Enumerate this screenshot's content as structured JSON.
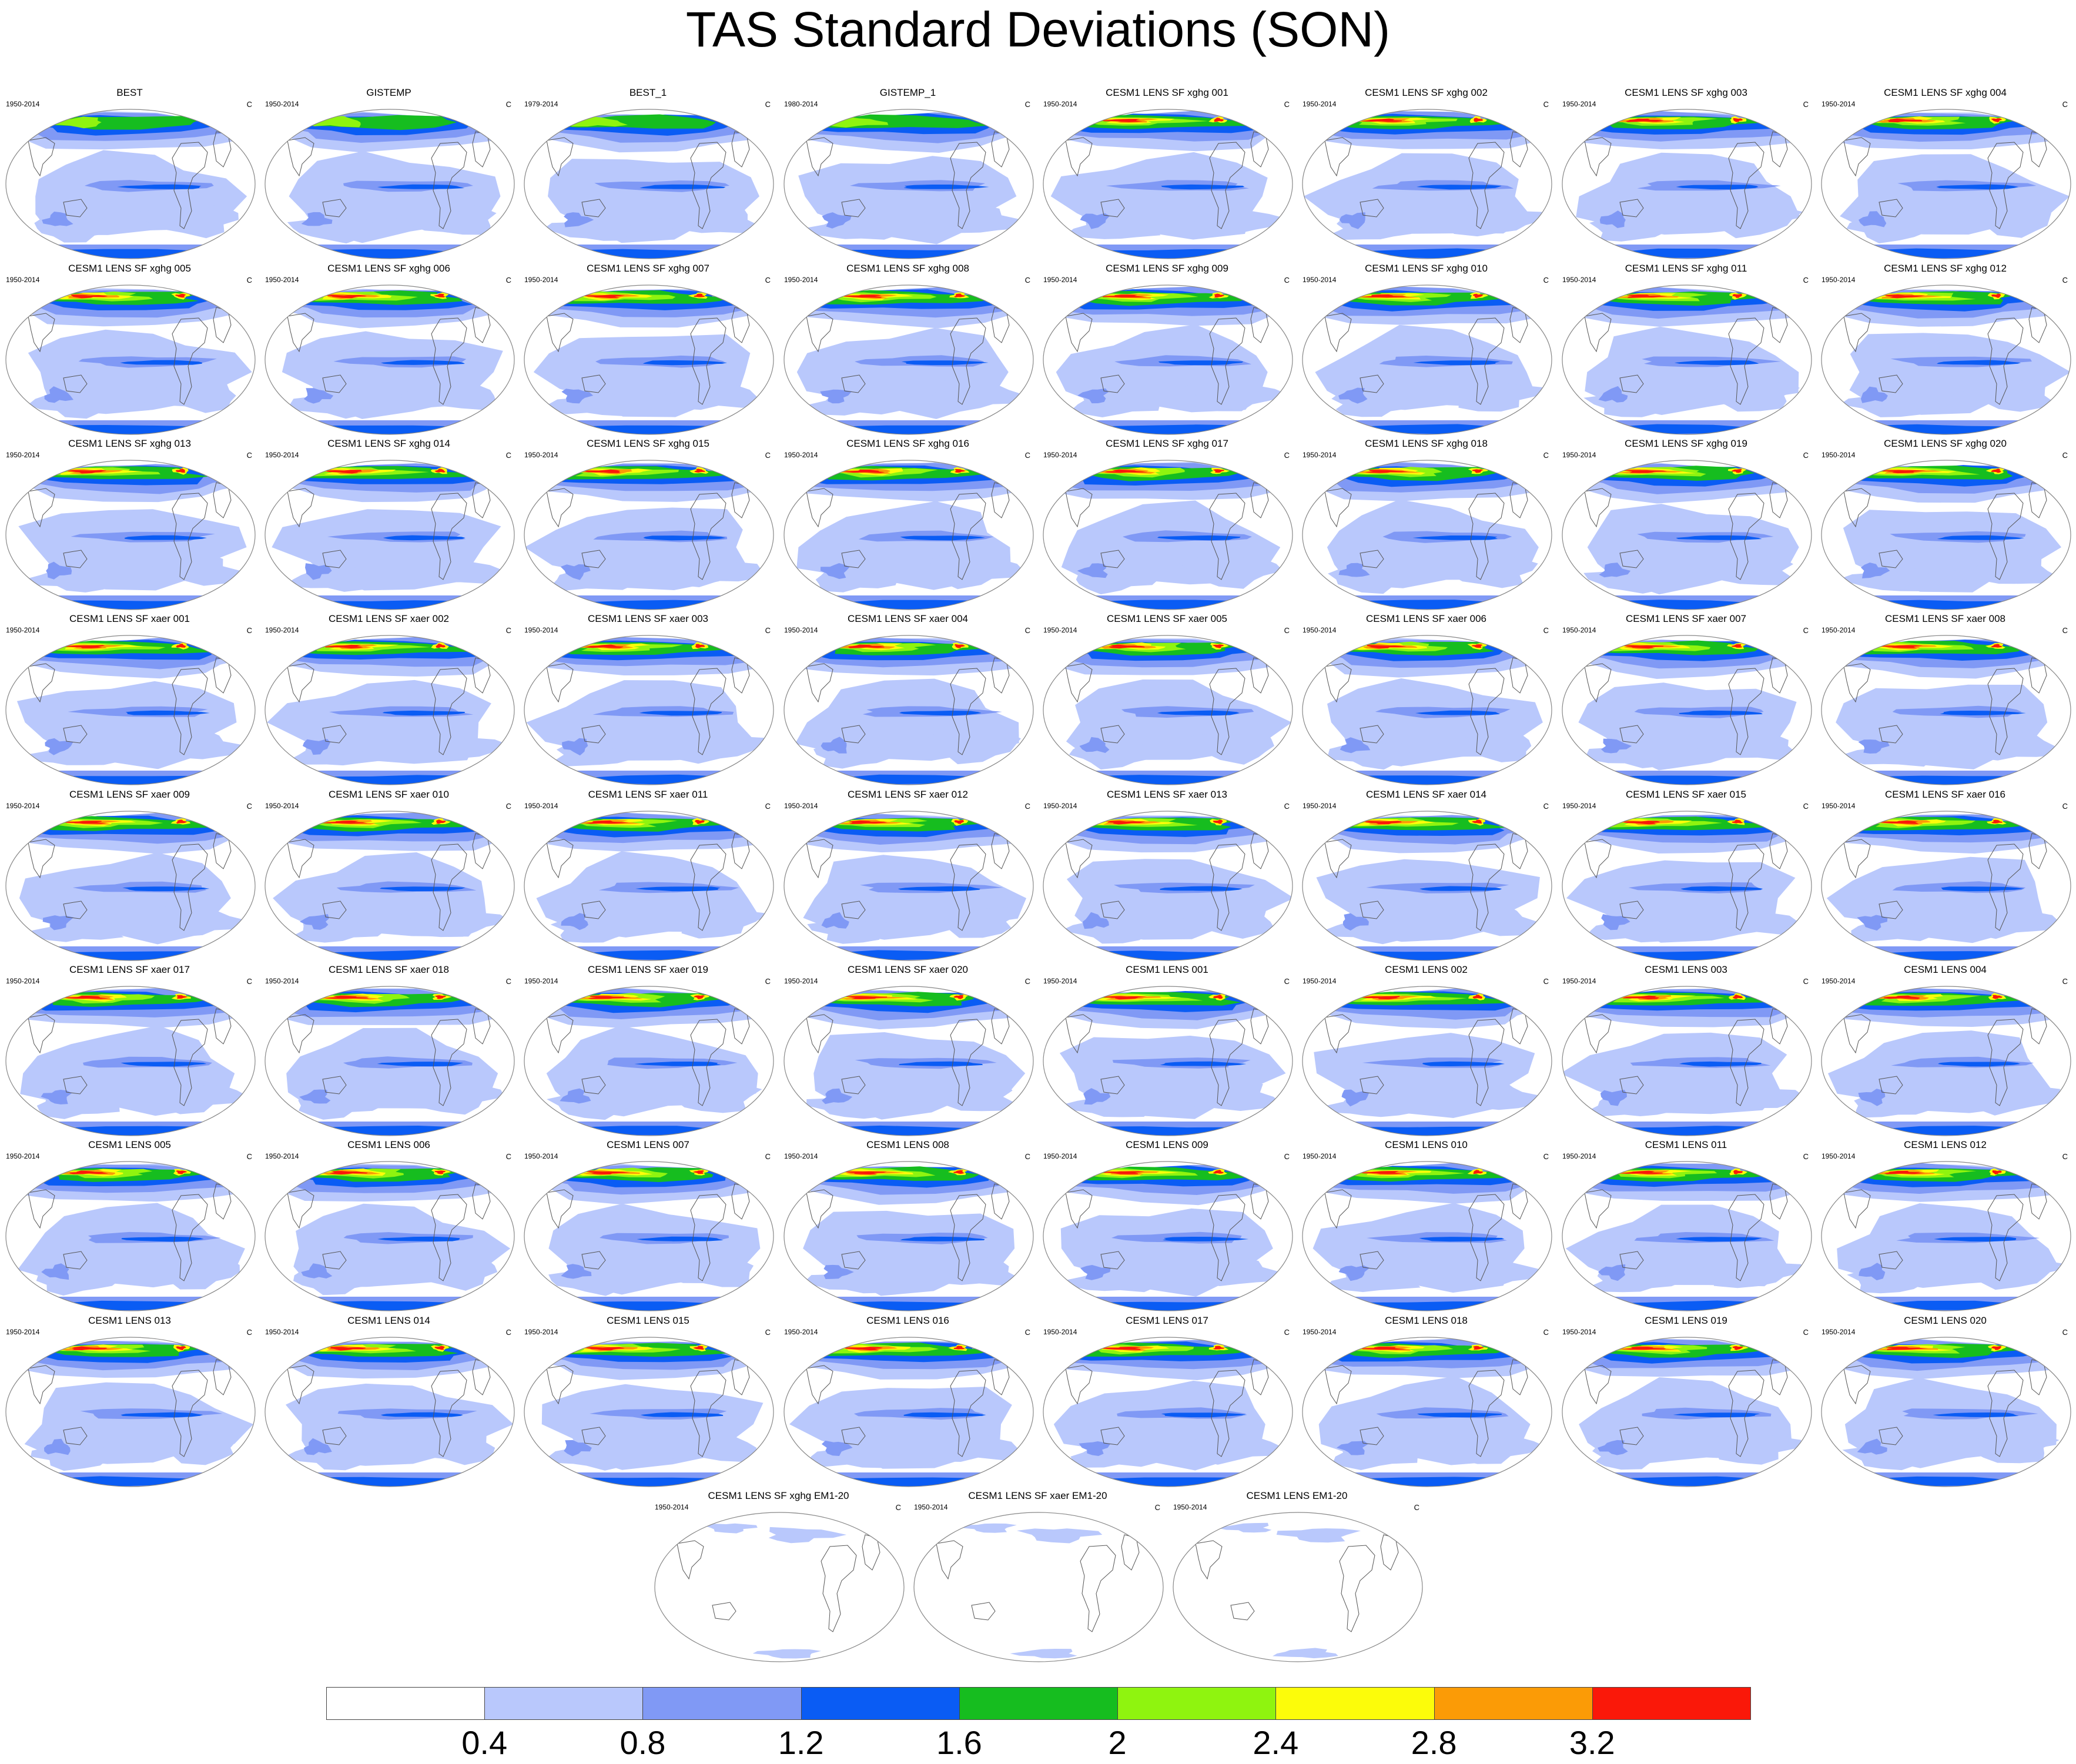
{
  "title": "TAS Standard Deviations (SON)",
  "units": "C",
  "colors": {
    "levels": [
      "#ffffff",
      "#b9c8fc",
      "#8099f5",
      "#0a5cf4",
      "#16bd1f",
      "#8ff40f",
      "#fcfc0a",
      "#fb9b06",
      "#fa1809"
    ],
    "coast": "#555555",
    "frame": "#888888"
  },
  "colorbar": {
    "labels": [
      "0.4",
      "0.8",
      "1.2",
      "1.6",
      "2",
      "2.4",
      "2.8",
      "3.2"
    ]
  },
  "panels": [
    {
      "title": "BEST",
      "period": "1950-2014",
      "kind": "obs"
    },
    {
      "title": "GISTEMP",
      "period": "1950-2014",
      "kind": "obs"
    },
    {
      "title": "BEST_1",
      "period": "1979-2014",
      "kind": "obs"
    },
    {
      "title": "GISTEMP_1",
      "period": "1980-2014",
      "kind": "obs"
    },
    {
      "title": "CESM1 LENS SF xghg 001",
      "period": "1950-2014",
      "kind": "xghg"
    },
    {
      "title": "CESM1 LENS SF xghg 002",
      "period": "1950-2014",
      "kind": "xghg"
    },
    {
      "title": "CESM1 LENS SF xghg 003",
      "period": "1950-2014",
      "kind": "xghg"
    },
    {
      "title": "CESM1 LENS SF xghg 004",
      "period": "1950-2014",
      "kind": "xghg"
    },
    {
      "title": "CESM1 LENS SF xghg 005",
      "period": "1950-2014",
      "kind": "xghg"
    },
    {
      "title": "CESM1 LENS SF xghg 006",
      "period": "1950-2014",
      "kind": "xghg"
    },
    {
      "title": "CESM1 LENS SF xghg 007",
      "period": "1950-2014",
      "kind": "xghg"
    },
    {
      "title": "CESM1 LENS SF xghg 008",
      "period": "1950-2014",
      "kind": "xghg"
    },
    {
      "title": "CESM1 LENS SF xghg 009",
      "period": "1950-2014",
      "kind": "xghg"
    },
    {
      "title": "CESM1 LENS SF xghg 010",
      "period": "1950-2014",
      "kind": "xghg"
    },
    {
      "title": "CESM1 LENS SF xghg 011",
      "period": "1950-2014",
      "kind": "xghg"
    },
    {
      "title": "CESM1 LENS SF xghg 012",
      "period": "1950-2014",
      "kind": "xghg"
    },
    {
      "title": "CESM1 LENS SF xghg 013",
      "period": "1950-2014",
      "kind": "xghg"
    },
    {
      "title": "CESM1 LENS SF xghg 014",
      "period": "1950-2014",
      "kind": "xghg"
    },
    {
      "title": "CESM1 LENS SF xghg 015",
      "period": "1950-2014",
      "kind": "xghg"
    },
    {
      "title": "CESM1 LENS SF xghg 016",
      "period": "1950-2014",
      "kind": "xghg"
    },
    {
      "title": "CESM1 LENS SF xghg 017",
      "period": "1950-2014",
      "kind": "xghg"
    },
    {
      "title": "CESM1 LENS SF xghg 018",
      "period": "1950-2014",
      "kind": "xghg"
    },
    {
      "title": "CESM1 LENS SF xghg 019",
      "period": "1950-2014",
      "kind": "xghg"
    },
    {
      "title": "CESM1 LENS SF xghg 020",
      "period": "1950-2014",
      "kind": "xghg"
    },
    {
      "title": "CESM1 LENS SF xaer 001",
      "period": "1950-2014",
      "kind": "xaer"
    },
    {
      "title": "CESM1 LENS SF xaer 002",
      "period": "1950-2014",
      "kind": "xaer"
    },
    {
      "title": "CESM1 LENS SF xaer 003",
      "period": "1950-2014",
      "kind": "xaer"
    },
    {
      "title": "CESM1 LENS SF xaer 004",
      "period": "1950-2014",
      "kind": "xaer"
    },
    {
      "title": "CESM1 LENS SF xaer 005",
      "period": "1950-2014",
      "kind": "xaer"
    },
    {
      "title": "CESM1 LENS SF xaer 006",
      "period": "1950-2014",
      "kind": "xaer"
    },
    {
      "title": "CESM1 LENS SF xaer 007",
      "period": "1950-2014",
      "kind": "xaer"
    },
    {
      "title": "CESM1 LENS SF xaer 008",
      "period": "1950-2014",
      "kind": "xaer"
    },
    {
      "title": "CESM1 LENS SF xaer 009",
      "period": "1950-2014",
      "kind": "xaer"
    },
    {
      "title": "CESM1 LENS SF xaer 010",
      "period": "1950-2014",
      "kind": "xaer"
    },
    {
      "title": "CESM1 LENS SF xaer 011",
      "period": "1950-2014",
      "kind": "xaer"
    },
    {
      "title": "CESM1 LENS SF xaer 012",
      "period": "1950-2014",
      "kind": "xaer"
    },
    {
      "title": "CESM1 LENS SF xaer 013",
      "period": "1950-2014",
      "kind": "xaer"
    },
    {
      "title": "CESM1 LENS SF xaer 014",
      "period": "1950-2014",
      "kind": "xaer"
    },
    {
      "title": "CESM1 LENS SF xaer 015",
      "period": "1950-2014",
      "kind": "xaer"
    },
    {
      "title": "CESM1 LENS SF xaer 016",
      "period": "1950-2014",
      "kind": "xaer"
    },
    {
      "title": "CESM1 LENS SF xaer 017",
      "period": "1950-2014",
      "kind": "xaer"
    },
    {
      "title": "CESM1 LENS SF xaer 018",
      "period": "1950-2014",
      "kind": "xaer"
    },
    {
      "title": "CESM1 LENS SF xaer 019",
      "period": "1950-2014",
      "kind": "xaer"
    },
    {
      "title": "CESM1 LENS SF xaer 020",
      "period": "1950-2014",
      "kind": "xaer"
    },
    {
      "title": "CESM1 LENS 001",
      "period": "1950-2014",
      "kind": "lens"
    },
    {
      "title": "CESM1 LENS 002",
      "period": "1950-2014",
      "kind": "lens"
    },
    {
      "title": "CESM1 LENS 003",
      "period": "1950-2014",
      "kind": "lens"
    },
    {
      "title": "CESM1 LENS 004",
      "period": "1950-2014",
      "kind": "lens"
    },
    {
      "title": "CESM1 LENS 005",
      "period": "1950-2014",
      "kind": "lens"
    },
    {
      "title": "CESM1 LENS 006",
      "period": "1950-2014",
      "kind": "lens"
    },
    {
      "title": "CESM1 LENS 007",
      "period": "1950-2014",
      "kind": "lens"
    },
    {
      "title": "CESM1 LENS 008",
      "period": "1950-2014",
      "kind": "lens"
    },
    {
      "title": "CESM1 LENS 009",
      "period": "1950-2014",
      "kind": "lens"
    },
    {
      "title": "CESM1 LENS 010",
      "period": "1950-2014",
      "kind": "lens"
    },
    {
      "title": "CESM1 LENS 011",
      "period": "1950-2014",
      "kind": "lens"
    },
    {
      "title": "CESM1 LENS 012",
      "period": "1950-2014",
      "kind": "lens"
    },
    {
      "title": "CESM1 LENS 013",
      "period": "1950-2014",
      "kind": "lens"
    },
    {
      "title": "CESM1 LENS 014",
      "period": "1950-2014",
      "kind": "lens"
    },
    {
      "title": "CESM1 LENS 015",
      "period": "1950-2014",
      "kind": "lens"
    },
    {
      "title": "CESM1 LENS 016",
      "period": "1950-2014",
      "kind": "lens"
    },
    {
      "title": "CESM1 LENS 017",
      "period": "1950-2014",
      "kind": "lens"
    },
    {
      "title": "CESM1 LENS 018",
      "period": "1950-2014",
      "kind": "lens"
    },
    {
      "title": "CESM1 LENS 019",
      "period": "1950-2014",
      "kind": "lens"
    },
    {
      "title": "CESM1 LENS 020",
      "period": "1950-2014",
      "kind": "lens"
    },
    {
      "title": "CESM1 LENS SF xghg EM1-20",
      "period": "1950-2014",
      "kind": "em"
    },
    {
      "title": "CESM1 LENS SF xaer EM1-20",
      "period": "1950-2014",
      "kind": "em"
    },
    {
      "title": "CESM1 LENS EM1-20",
      "period": "1950-2014",
      "kind": "em"
    }
  ]
}
